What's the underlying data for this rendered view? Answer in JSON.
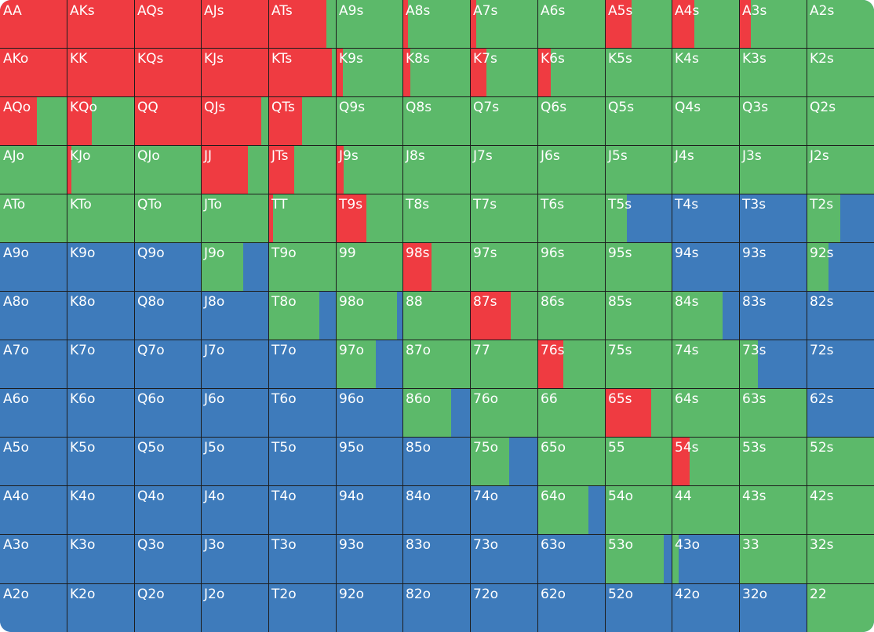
{
  "colors": {
    "raise": "#ef3b41",
    "call": "#5cb96a",
    "fold": "#3e7bbb",
    "grid_line": "#1d1d1d",
    "label": "#ffffff"
  },
  "legend_actions": [
    "raise",
    "call",
    "fold"
  ],
  "hands": [
    [
      {
        "label": "AA",
        "mix": [
          1,
          0,
          0
        ]
      },
      {
        "label": "AKs",
        "mix": [
          1,
          0,
          0
        ]
      },
      {
        "label": "AQs",
        "mix": [
          1,
          0,
          0
        ]
      },
      {
        "label": "AJs",
        "mix": [
          1,
          0,
          0
        ]
      },
      {
        "label": "ATs",
        "mix": [
          0.86,
          0.14,
          0
        ]
      },
      {
        "label": "A9s",
        "mix": [
          0,
          1,
          0
        ]
      },
      {
        "label": "A8s",
        "mix": [
          0.08,
          0.92,
          0
        ]
      },
      {
        "label": "A7s",
        "mix": [
          0.09,
          0.91,
          0
        ]
      },
      {
        "label": "A6s",
        "mix": [
          0,
          1,
          0
        ]
      },
      {
        "label": "A5s",
        "mix": [
          0.4,
          0.6,
          0
        ]
      },
      {
        "label": "A4s",
        "mix": [
          0.34,
          0.66,
          0
        ]
      },
      {
        "label": "A3s",
        "mix": [
          0.17,
          0.83,
          0
        ]
      },
      {
        "label": "A2s",
        "mix": [
          0,
          1,
          0
        ]
      }
    ],
    [
      {
        "label": "AKo",
        "mix": [
          1,
          0,
          0
        ]
      },
      {
        "label": "KK",
        "mix": [
          1,
          0,
          0
        ]
      },
      {
        "label": "KQs",
        "mix": [
          1,
          0,
          0
        ]
      },
      {
        "label": "KJs",
        "mix": [
          1,
          0,
          0
        ]
      },
      {
        "label": "KTs",
        "mix": [
          0.94,
          0.06,
          0
        ]
      },
      {
        "label": "K9s",
        "mix": [
          0.11,
          0.89,
          0
        ]
      },
      {
        "label": "K8s",
        "mix": [
          0.12,
          0.88,
          0
        ]
      },
      {
        "label": "K7s",
        "mix": [
          0.24,
          0.76,
          0
        ]
      },
      {
        "label": "K6s",
        "mix": [
          0.2,
          0.8,
          0
        ]
      },
      {
        "label": "K5s",
        "mix": [
          0,
          1,
          0
        ]
      },
      {
        "label": "K4s",
        "mix": [
          0,
          1,
          0
        ]
      },
      {
        "label": "K3s",
        "mix": [
          0,
          1,
          0
        ]
      },
      {
        "label": "K2s",
        "mix": [
          0,
          1,
          0
        ]
      }
    ],
    [
      {
        "label": "AQo",
        "mix": [
          0.55,
          0.45,
          0
        ]
      },
      {
        "label": "KQo",
        "mix": [
          0.37,
          0.63,
          0
        ]
      },
      {
        "label": "QQ",
        "mix": [
          1,
          0,
          0
        ]
      },
      {
        "label": "QJs",
        "mix": [
          0.9,
          0.1,
          0
        ]
      },
      {
        "label": "QTs",
        "mix": [
          0.5,
          0.5,
          0
        ]
      },
      {
        "label": "Q9s",
        "mix": [
          0,
          1,
          0
        ]
      },
      {
        "label": "Q8s",
        "mix": [
          0,
          1,
          0
        ]
      },
      {
        "label": "Q7s",
        "mix": [
          0,
          1,
          0
        ]
      },
      {
        "label": "Q6s",
        "mix": [
          0,
          1,
          0
        ]
      },
      {
        "label": "Q5s",
        "mix": [
          0,
          1,
          0
        ]
      },
      {
        "label": "Q4s",
        "mix": [
          0,
          1,
          0
        ]
      },
      {
        "label": "Q3s",
        "mix": [
          0,
          1,
          0
        ]
      },
      {
        "label": "Q2s",
        "mix": [
          0,
          1,
          0
        ]
      }
    ],
    [
      {
        "label": "AJo",
        "mix": [
          0,
          1,
          0
        ]
      },
      {
        "label": "KJo",
        "mix": [
          0.07,
          0.93,
          0
        ]
      },
      {
        "label": "QJo",
        "mix": [
          0,
          1,
          0
        ]
      },
      {
        "label": "JJ",
        "mix": [
          0.7,
          0.3,
          0
        ]
      },
      {
        "label": "JTs",
        "mix": [
          0.38,
          0.62,
          0
        ]
      },
      {
        "label": "J9s",
        "mix": [
          0.12,
          0.88,
          0
        ]
      },
      {
        "label": "J8s",
        "mix": [
          0,
          1,
          0
        ]
      },
      {
        "label": "J7s",
        "mix": [
          0,
          1,
          0
        ]
      },
      {
        "label": "J6s",
        "mix": [
          0,
          1,
          0
        ]
      },
      {
        "label": "J5s",
        "mix": [
          0,
          1,
          0
        ]
      },
      {
        "label": "J4s",
        "mix": [
          0,
          1,
          0
        ]
      },
      {
        "label": "J3s",
        "mix": [
          0,
          1,
          0
        ]
      },
      {
        "label": "J2s",
        "mix": [
          0,
          1,
          0
        ]
      }
    ],
    [
      {
        "label": "ATo",
        "mix": [
          0,
          1,
          0
        ]
      },
      {
        "label": "KTo",
        "mix": [
          0,
          1,
          0
        ]
      },
      {
        "label": "QTo",
        "mix": [
          0,
          1,
          0
        ]
      },
      {
        "label": "JTo",
        "mix": [
          0,
          1,
          0
        ]
      },
      {
        "label": "TT",
        "mix": [
          0.07,
          0.93,
          0
        ]
      },
      {
        "label": "T9s",
        "mix": [
          0.46,
          0.54,
          0
        ]
      },
      {
        "label": "T8s",
        "mix": [
          0,
          1,
          0
        ]
      },
      {
        "label": "T7s",
        "mix": [
          0,
          1,
          0
        ]
      },
      {
        "label": "T6s",
        "mix": [
          0,
          1,
          0
        ]
      },
      {
        "label": "T5s",
        "mix": [
          0,
          0.33,
          0.67
        ]
      },
      {
        "label": "T4s",
        "mix": [
          0,
          0,
          1
        ]
      },
      {
        "label": "T3s",
        "mix": [
          0,
          0,
          1
        ]
      },
      {
        "label": "T2s",
        "mix": [
          0,
          0.5,
          0.5
        ]
      }
    ],
    [
      {
        "label": "A9o",
        "mix": [
          0,
          0,
          1
        ]
      },
      {
        "label": "K9o",
        "mix": [
          0,
          0,
          1
        ]
      },
      {
        "label": "Q9o",
        "mix": [
          0,
          0,
          1
        ]
      },
      {
        "label": "J9o",
        "mix": [
          0,
          0.63,
          0.37
        ]
      },
      {
        "label": "T9o",
        "mix": [
          0,
          1,
          0
        ]
      },
      {
        "label": "99",
        "mix": [
          0,
          1,
          0
        ]
      },
      {
        "label": "98s",
        "mix": [
          0.43,
          0.57,
          0
        ]
      },
      {
        "label": "97s",
        "mix": [
          0,
          1,
          0
        ]
      },
      {
        "label": "96s",
        "mix": [
          0,
          1,
          0
        ]
      },
      {
        "label": "95s",
        "mix": [
          0,
          1,
          0
        ]
      },
      {
        "label": "94s",
        "mix": [
          0,
          0,
          1
        ]
      },
      {
        "label": "93s",
        "mix": [
          0,
          0,
          1
        ]
      },
      {
        "label": "92s",
        "mix": [
          0,
          0.33,
          0.67
        ]
      }
    ],
    [
      {
        "label": "A8o",
        "mix": [
          0,
          0,
          1
        ]
      },
      {
        "label": "K8o",
        "mix": [
          0,
          0,
          1
        ]
      },
      {
        "label": "Q8o",
        "mix": [
          0,
          0,
          1
        ]
      },
      {
        "label": "J8o",
        "mix": [
          0,
          0,
          1
        ]
      },
      {
        "label": "T8o",
        "mix": [
          0,
          0.76,
          0.24
        ]
      },
      {
        "label": "98o",
        "mix": [
          0,
          0.92,
          0.08
        ]
      },
      {
        "label": "88",
        "mix": [
          0,
          1,
          0
        ]
      },
      {
        "label": "87s",
        "mix": [
          0.61,
          0.39,
          0
        ]
      },
      {
        "label": "86s",
        "mix": [
          0,
          1,
          0
        ]
      },
      {
        "label": "85s",
        "mix": [
          0,
          1,
          0
        ]
      },
      {
        "label": "84s",
        "mix": [
          0,
          0.76,
          0.24
        ]
      },
      {
        "label": "83s",
        "mix": [
          0,
          0,
          1
        ]
      },
      {
        "label": "82s",
        "mix": [
          0,
          0,
          1
        ]
      }
    ],
    [
      {
        "label": "A7o",
        "mix": [
          0,
          0,
          1
        ]
      },
      {
        "label": "K7o",
        "mix": [
          0,
          0,
          1
        ]
      },
      {
        "label": "Q7o",
        "mix": [
          0,
          0,
          1
        ]
      },
      {
        "label": "J7o",
        "mix": [
          0,
          0,
          1
        ]
      },
      {
        "label": "T7o",
        "mix": [
          0,
          0,
          1
        ]
      },
      {
        "label": "97o",
        "mix": [
          0,
          0.6,
          0.4
        ]
      },
      {
        "label": "87o",
        "mix": [
          0,
          1,
          0
        ]
      },
      {
        "label": "77",
        "mix": [
          0,
          1,
          0
        ]
      },
      {
        "label": "76s",
        "mix": [
          0.38,
          0.62,
          0
        ]
      },
      {
        "label": "75s",
        "mix": [
          0,
          1,
          0
        ]
      },
      {
        "label": "74s",
        "mix": [
          0,
          1,
          0
        ]
      },
      {
        "label": "73s",
        "mix": [
          0,
          0.28,
          0.72
        ]
      },
      {
        "label": "72s",
        "mix": [
          0,
          0,
          1
        ]
      }
    ],
    [
      {
        "label": "A6o",
        "mix": [
          0,
          0,
          1
        ]
      },
      {
        "label": "K6o",
        "mix": [
          0,
          0,
          1
        ]
      },
      {
        "label": "Q6o",
        "mix": [
          0,
          0,
          1
        ]
      },
      {
        "label": "J6o",
        "mix": [
          0,
          0,
          1
        ]
      },
      {
        "label": "T6o",
        "mix": [
          0,
          0,
          1
        ]
      },
      {
        "label": "96o",
        "mix": [
          0,
          0,
          1
        ]
      },
      {
        "label": "86o",
        "mix": [
          0,
          0.72,
          0.28
        ]
      },
      {
        "label": "76o",
        "mix": [
          0,
          1,
          0
        ]
      },
      {
        "label": "66",
        "mix": [
          0,
          1,
          0
        ]
      },
      {
        "label": "65s",
        "mix": [
          0.69,
          0.31,
          0
        ]
      },
      {
        "label": "64s",
        "mix": [
          0,
          1,
          0
        ]
      },
      {
        "label": "63s",
        "mix": [
          0,
          1,
          0
        ]
      },
      {
        "label": "62s",
        "mix": [
          0,
          0,
          1
        ]
      }
    ],
    [
      {
        "label": "A5o",
        "mix": [
          0,
          0,
          1
        ]
      },
      {
        "label": "K5o",
        "mix": [
          0,
          0,
          1
        ]
      },
      {
        "label": "Q5o",
        "mix": [
          0,
          0,
          1
        ]
      },
      {
        "label": "J5o",
        "mix": [
          0,
          0,
          1
        ]
      },
      {
        "label": "T5o",
        "mix": [
          0,
          0,
          1
        ]
      },
      {
        "label": "95o",
        "mix": [
          0,
          0,
          1
        ]
      },
      {
        "label": "85o",
        "mix": [
          0,
          0,
          1
        ]
      },
      {
        "label": "75o",
        "mix": [
          0,
          0.58,
          0.42
        ]
      },
      {
        "label": "65o",
        "mix": [
          0,
          1,
          0
        ]
      },
      {
        "label": "55",
        "mix": [
          0,
          1,
          0
        ]
      },
      {
        "label": "54s",
        "mix": [
          0.27,
          0.73,
          0
        ]
      },
      {
        "label": "53s",
        "mix": [
          0,
          1,
          0
        ]
      },
      {
        "label": "52s",
        "mix": [
          0,
          1,
          0
        ]
      }
    ],
    [
      {
        "label": "A4o",
        "mix": [
          0,
          0,
          1
        ]
      },
      {
        "label": "K4o",
        "mix": [
          0,
          0,
          1
        ]
      },
      {
        "label": "Q4o",
        "mix": [
          0,
          0,
          1
        ]
      },
      {
        "label": "J4o",
        "mix": [
          0,
          0,
          1
        ]
      },
      {
        "label": "T4o",
        "mix": [
          0,
          0,
          1
        ]
      },
      {
        "label": "94o",
        "mix": [
          0,
          0,
          1
        ]
      },
      {
        "label": "84o",
        "mix": [
          0,
          0,
          1
        ]
      },
      {
        "label": "74o",
        "mix": [
          0,
          0,
          1
        ]
      },
      {
        "label": "64o",
        "mix": [
          0,
          0.76,
          0.24
        ]
      },
      {
        "label": "54o",
        "mix": [
          0,
          1,
          0
        ]
      },
      {
        "label": "44",
        "mix": [
          0,
          1,
          0
        ]
      },
      {
        "label": "43s",
        "mix": [
          0,
          1,
          0
        ]
      },
      {
        "label": "42s",
        "mix": [
          0,
          1,
          0
        ]
      }
    ],
    [
      {
        "label": "A3o",
        "mix": [
          0,
          0,
          1
        ]
      },
      {
        "label": "K3o",
        "mix": [
          0,
          0,
          1
        ]
      },
      {
        "label": "Q3o",
        "mix": [
          0,
          0,
          1
        ]
      },
      {
        "label": "J3o",
        "mix": [
          0,
          0,
          1
        ]
      },
      {
        "label": "T3o",
        "mix": [
          0,
          0,
          1
        ]
      },
      {
        "label": "93o",
        "mix": [
          0,
          0,
          1
        ]
      },
      {
        "label": "83o",
        "mix": [
          0,
          0,
          1
        ]
      },
      {
        "label": "73o",
        "mix": [
          0,
          0,
          1
        ]
      },
      {
        "label": "63o",
        "mix": [
          0,
          0,
          1
        ]
      },
      {
        "label": "53o",
        "mix": [
          0,
          0.88,
          0.12
        ]
      },
      {
        "label": "43o",
        "mix": [
          0,
          0.1,
          0.9
        ]
      },
      {
        "label": "33",
        "mix": [
          0,
          1,
          0
        ]
      },
      {
        "label": "32s",
        "mix": [
          0,
          1,
          0
        ]
      }
    ],
    [
      {
        "label": "A2o",
        "mix": [
          0,
          0,
          1
        ]
      },
      {
        "label": "K2o",
        "mix": [
          0,
          0,
          1
        ]
      },
      {
        "label": "Q2o",
        "mix": [
          0,
          0,
          1
        ]
      },
      {
        "label": "J2o",
        "mix": [
          0,
          0,
          1
        ]
      },
      {
        "label": "T2o",
        "mix": [
          0,
          0,
          1
        ]
      },
      {
        "label": "92o",
        "mix": [
          0,
          0,
          1
        ]
      },
      {
        "label": "82o",
        "mix": [
          0,
          0,
          1
        ]
      },
      {
        "label": "72o",
        "mix": [
          0,
          0,
          1
        ]
      },
      {
        "label": "62o",
        "mix": [
          0,
          0,
          1
        ]
      },
      {
        "label": "52o",
        "mix": [
          0,
          0,
          1
        ]
      },
      {
        "label": "42o",
        "mix": [
          0,
          0,
          1
        ]
      },
      {
        "label": "32o",
        "mix": [
          0,
          0,
          1
        ]
      },
      {
        "label": "22",
        "mix": [
          0,
          1,
          0
        ]
      }
    ]
  ]
}
